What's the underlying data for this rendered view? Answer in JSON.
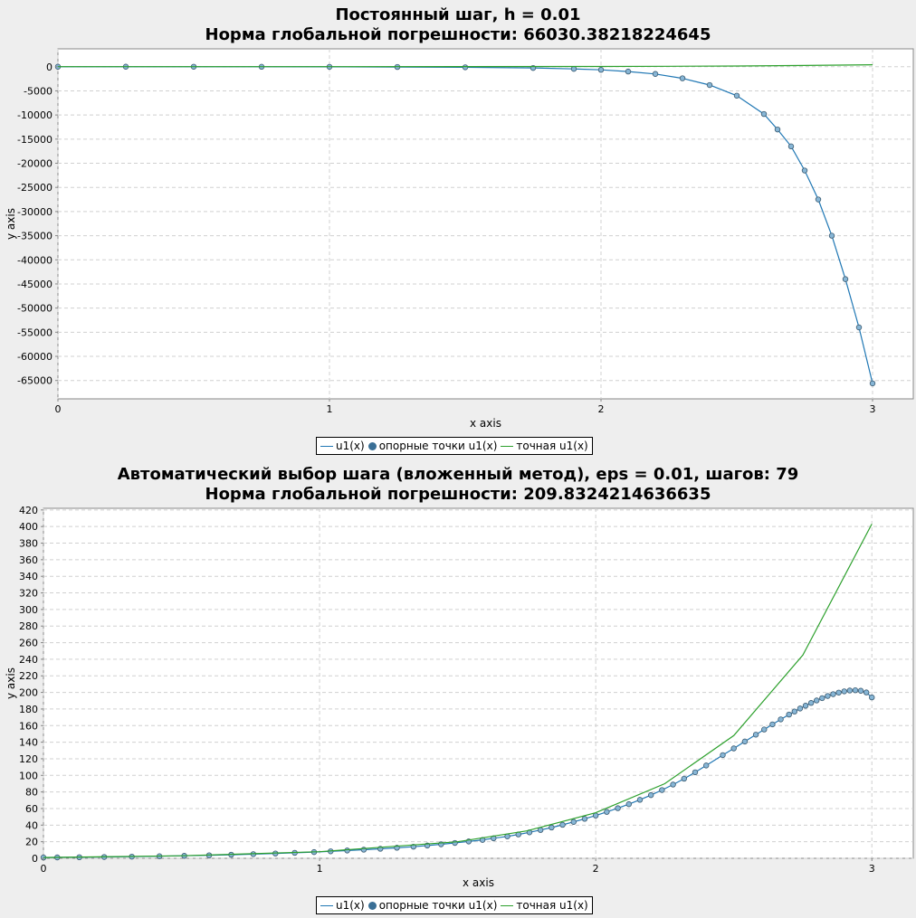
{
  "charts": [
    {
      "title_line1": "Постоянный шаг, h = 0.01",
      "title_line2": "Норма глобальной погрешности: 66030.38218224645",
      "xlabel": "x axis",
      "ylabel": "y axis",
      "legend": {
        "line_label": "u1(x)",
        "points_label": "опорные точки u1(x)",
        "exact_label": "точная u1(x)"
      }
    },
    {
      "title_line1": "Автоматический выбор шага (вложенный метод), eps = 0.01, шагов: 79",
      "title_line2": "Норма глобальной погрешности: 209.8324214636635",
      "xlabel": "x axis",
      "ylabel": "y axis",
      "legend": {
        "line_label": "u1(x)",
        "points_label": "опорные точки u1(x)",
        "exact_label": "точная u1(x)"
      }
    }
  ],
  "colors": {
    "numeric": "#1f77b4",
    "points_fill": "#87b6d6",
    "points_stroke": "#3b5a70",
    "exact": "#2ca02c",
    "legend_dot": "#3a6f96",
    "grid": "#d0d0d0",
    "plot_bg": "#ffffff",
    "page_bg": "#eeeeee"
  },
  "chart_data": [
    {
      "type": "line",
      "title": "Постоянный шаг, h = 0.01",
      "subtitle": "Норма глобальной погрешности: 66030.38218224645",
      "xlabel": "x axis",
      "ylabel": "y axis",
      "xlim": [
        0,
        3.15
      ],
      "ylim": [
        -68800,
        3700
      ],
      "x_ticks": [
        0,
        1,
        2,
        3
      ],
      "y_ticks": [
        0,
        -5000,
        -10000,
        -15000,
        -20000,
        -25000,
        -30000,
        -35000,
        -40000,
        -45000,
        -50000,
        -55000,
        -60000,
        -65000
      ],
      "grid": true,
      "legend_position": "bottom-center",
      "series": [
        {
          "name": "u1(x)",
          "style": "line-with-markers",
          "x": [
            0,
            0.25,
            0.5,
            0.75,
            1.0,
            1.25,
            1.5,
            1.75,
            1.9,
            2.0,
            2.1,
            2.2,
            2.3,
            2.4,
            2.5,
            2.6,
            2.65,
            2.7,
            2.75,
            2.8,
            2.85,
            2.9,
            2.95,
            3.0
          ],
          "y": [
            0,
            0,
            -5,
            -15,
            -30,
            -60,
            -120,
            -260,
            -450,
            -650,
            -1000,
            -1500,
            -2400,
            -3800,
            -6000,
            -9800,
            -13000,
            -16500,
            -21500,
            -27500,
            -35000,
            -44000,
            -54000,
            -65600
          ]
        },
        {
          "name": "точная u1(x)",
          "style": "line",
          "x": [
            0,
            0.5,
            1.0,
            1.5,
            2.0,
            2.25,
            2.5,
            2.75,
            3.0
          ],
          "y": [
            1,
            3,
            8,
            20,
            55,
            90,
            148,
            245,
            403
          ]
        }
      ]
    },
    {
      "type": "line",
      "title": "Автоматический выбор шага (вложенный метод), eps = 0.01, шагов: 79",
      "subtitle": "Норма глобальной погрешности: 209.8324214636635",
      "xlabel": "x axis",
      "ylabel": "y axis",
      "xlim": [
        0,
        3.15
      ],
      "ylim": [
        0,
        422
      ],
      "x_ticks": [
        0,
        1,
        2,
        3
      ],
      "y_ticks": [
        0,
        20,
        40,
        60,
        80,
        100,
        120,
        140,
        160,
        180,
        200,
        220,
        240,
        260,
        280,
        300,
        320,
        340,
        360,
        380,
        400,
        420
      ],
      "grid": true,
      "legend_position": "bottom-center",
      "series": [
        {
          "name": "u1(x)",
          "style": "line-with-markers",
          "x": [
            0,
            0.05,
            0.13,
            0.22,
            0.32,
            0.42,
            0.51,
            0.6,
            0.68,
            0.76,
            0.84,
            0.91,
            0.98,
            1.04,
            1.1,
            1.16,
            1.22,
            1.28,
            1.34,
            1.39,
            1.44,
            1.49,
            1.54,
            1.59,
            1.63,
            1.68,
            1.72,
            1.76,
            1.8,
            1.84,
            1.88,
            1.92,
            1.96,
            2.0,
            2.04,
            2.08,
            2.12,
            2.16,
            2.2,
            2.24,
            2.28,
            2.32,
            2.36,
            2.4,
            2.46,
            2.5,
            2.54,
            2.58,
            2.61,
            2.64,
            2.67,
            2.7,
            2.72,
            2.74,
            2.76,
            2.78,
            2.8,
            2.82,
            2.84,
            2.86,
            2.88,
            2.9,
            2.92,
            2.94,
            2.96,
            2.98,
            3.0
          ],
          "y": [
            1,
            1.1,
            1.3,
            1.6,
            2.0,
            2.5,
            3.0,
            3.6,
            4.3,
            5.0,
            5.8,
            6.6,
            7.5,
            8.4,
            9.4,
            10.4,
            11.5,
            12.7,
            14.0,
            15.4,
            16.9,
            18.5,
            20.3,
            22.2,
            24.2,
            26.4,
            28.8,
            31.3,
            34.1,
            37.1,
            40.4,
            43.9,
            47.6,
            51.6,
            55.9,
            60.4,
            65.3,
            70.5,
            76.2,
            82.3,
            88.9,
            96.0,
            103.7,
            111.9,
            124.4,
            132.5,
            140.8,
            149.1,
            155.3,
            161.5,
            167.5,
            173.3,
            177.0,
            180.6,
            184.0,
            187.3,
            190.3,
            193.1,
            195.7,
            197.9,
            199.8,
            201.3,
            202.3,
            202.6,
            202.0,
            200.0,
            194.0
          ]
        },
        {
          "name": "точная u1(x)",
          "style": "line",
          "x": [
            0,
            0.5,
            1.0,
            1.5,
            1.75,
            2.0,
            2.25,
            2.5,
            2.75,
            3.0
          ],
          "y": [
            1,
            3,
            8,
            20,
            33,
            55,
            90,
            148,
            245,
            403
          ]
        }
      ]
    }
  ]
}
